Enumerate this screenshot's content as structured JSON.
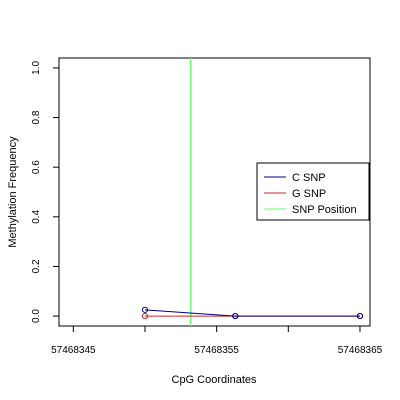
{
  "chart_data": {
    "type": "line",
    "xlabel": "CpG Coordinates",
    "ylabel": "Methylation Frequency",
    "xlim": [
      57468344,
      57468365.7
    ],
    "ylim": [
      -0.04,
      1.04
    ],
    "x_ticks": [
      57468345,
      57468355,
      57468365
    ],
    "x_tick_labels": [
      "57468345",
      "57468355",
      "57468365"
    ],
    "y_ticks": [
      0.0,
      0.2,
      0.4,
      0.6,
      0.8,
      1.0
    ],
    "y_tick_labels": [
      "0.0",
      "0.2",
      "0.4",
      "0.6",
      "0.8",
      "1.0"
    ],
    "grid": false,
    "legend_position": "right",
    "series": [
      {
        "name": "C SNP",
        "color": "#00008B",
        "x": [
          57468350,
          57468356.3,
          57468365
        ],
        "y": [
          0.025,
          0.0,
          0.0
        ]
      },
      {
        "name": "G SNP",
        "color": "#CD2626",
        "x": [
          57468350,
          57468356.3,
          57468365
        ],
        "y": [
          0.0,
          0.0,
          0.0
        ]
      }
    ],
    "snp_position": {
      "name": "SNP Position",
      "color": "#66FF66",
      "x": 57468353.2
    }
  }
}
